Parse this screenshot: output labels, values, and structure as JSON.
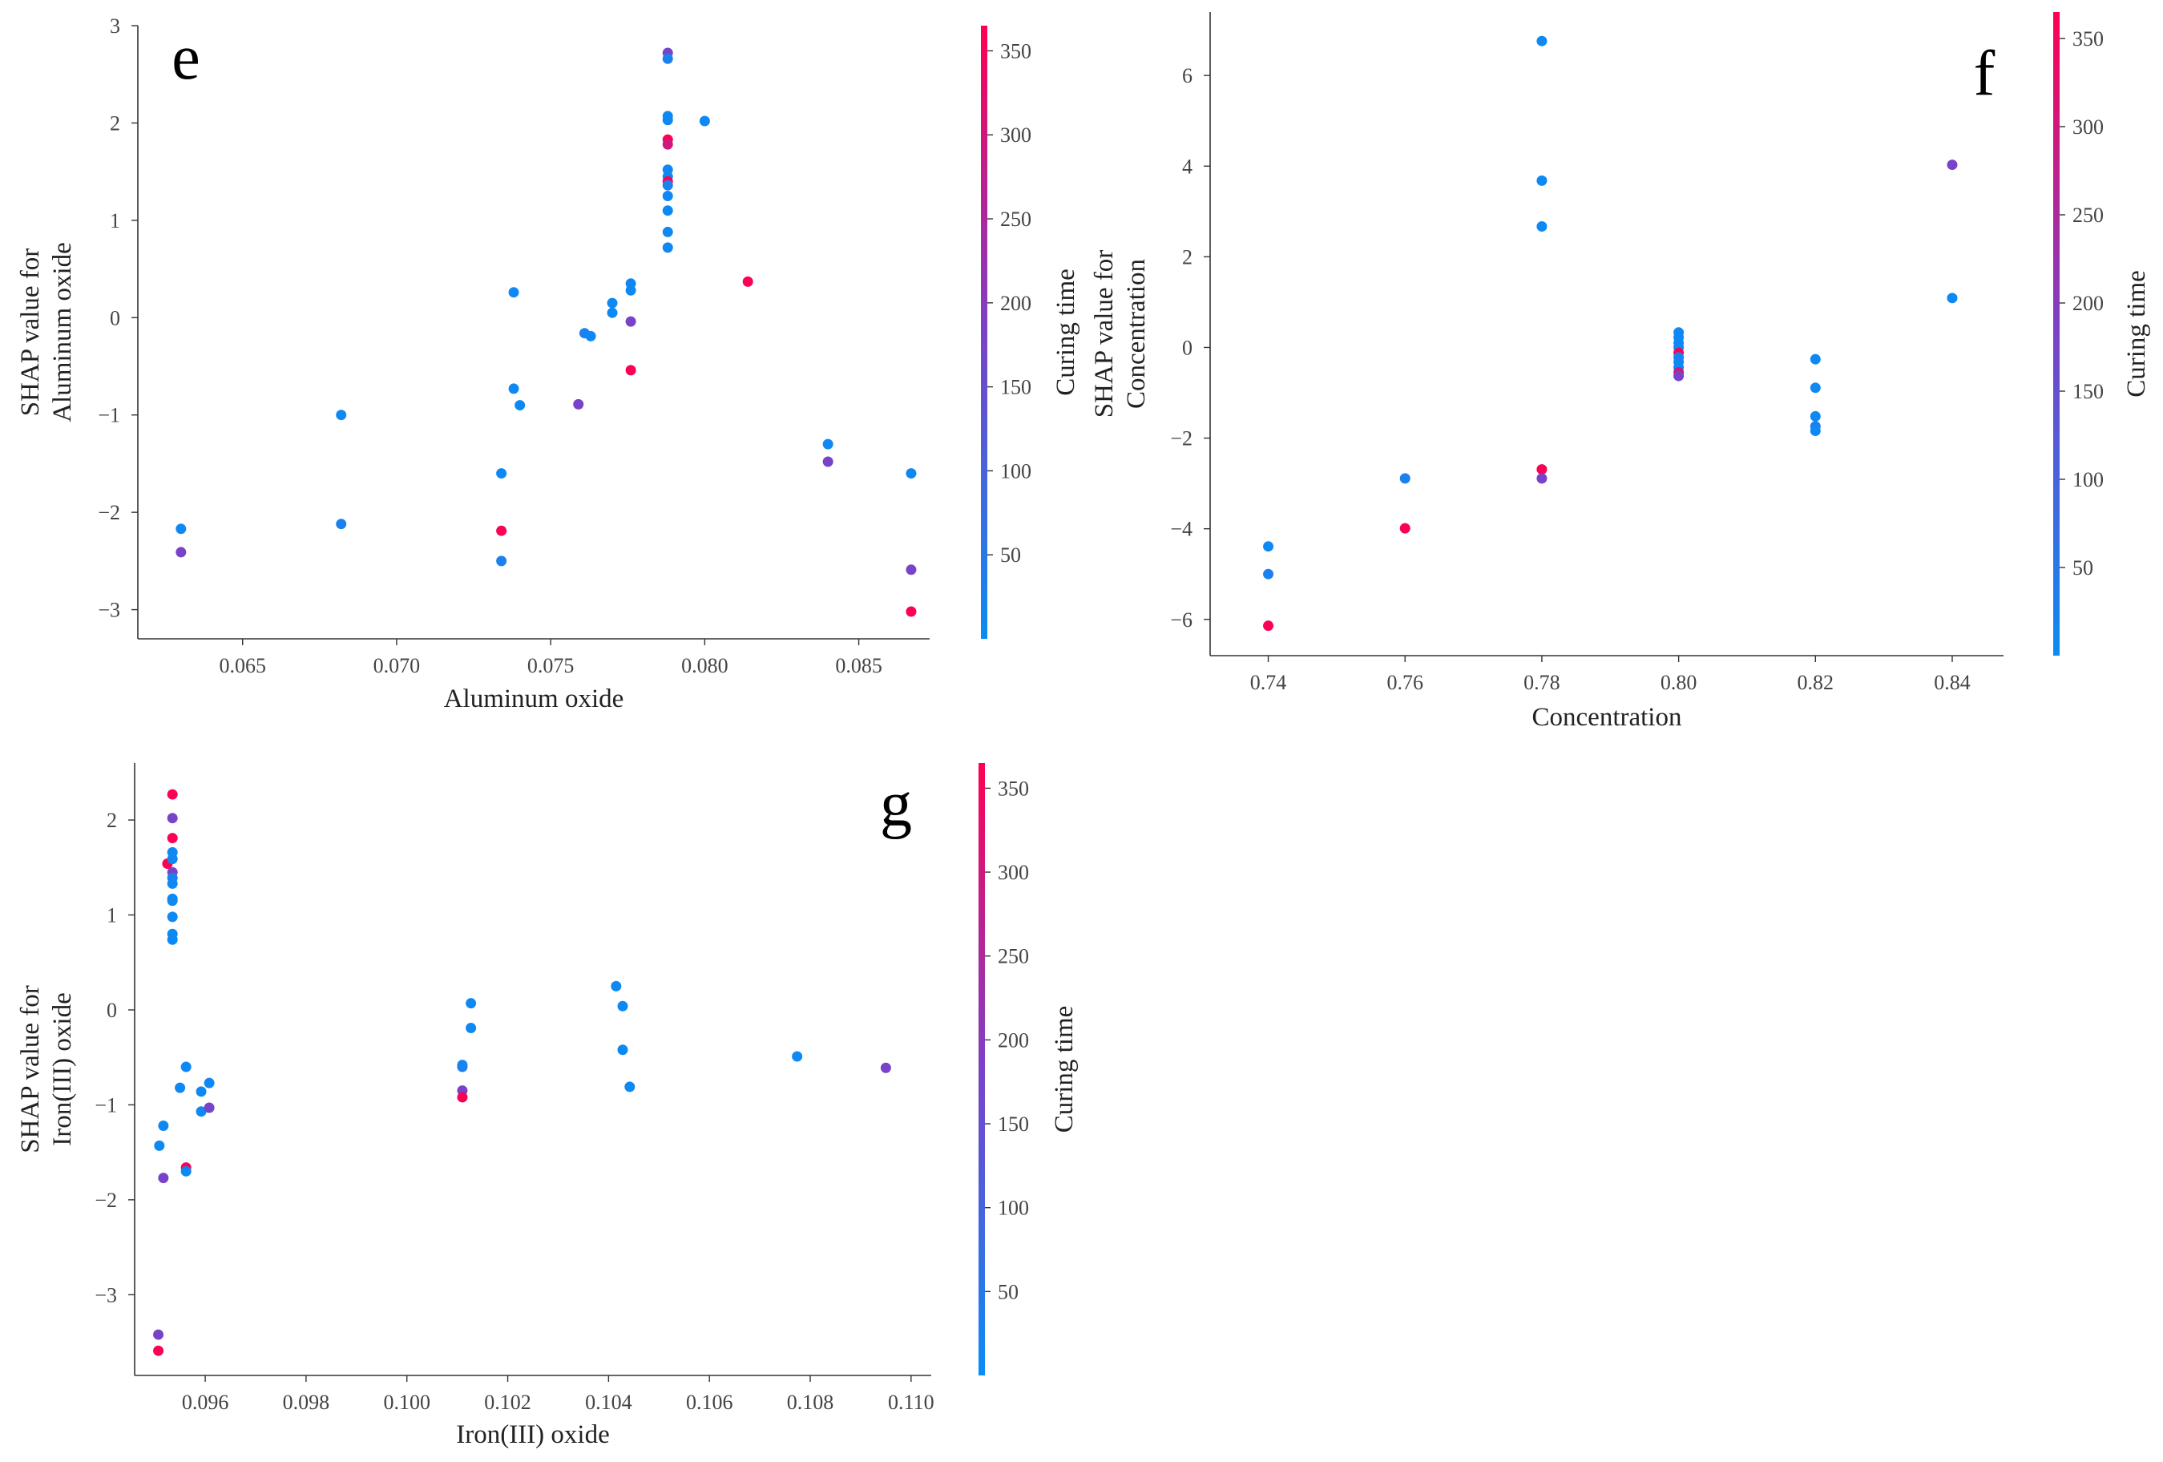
{
  "colors": {
    "low": "#0a8cf5",
    "high": "#ff0052",
    "axis": "#333333"
  },
  "colorbar": {
    "title": "Curing time",
    "range": [
      0,
      365
    ],
    "ticks": [
      50,
      100,
      150,
      200,
      250,
      300,
      350
    ]
  },
  "chart_data": [
    {
      "panel": "e",
      "type": "scatter",
      "xlabel": "Aluminum oxide",
      "ylabel_lines": [
        "SHAP value for",
        "Aluminum oxide"
      ],
      "xlim": [
        0.0616,
        0.0873
      ],
      "ylim": [
        -3.3,
        3.0
      ],
      "xticks": [
        0.065,
        0.07,
        0.075,
        0.08,
        0.085
      ],
      "xtick_labels": [
        "0.065",
        "0.070",
        "0.075",
        "0.080",
        "0.085"
      ],
      "yticks": [
        -3,
        -2,
        -1,
        0,
        1,
        2,
        3
      ],
      "ytick_labels": [
        "−3",
        "−2",
        "−1",
        "0",
        "1",
        "2",
        "3"
      ],
      "points": [
        {
          "x": 0.063,
          "y": -2.17,
          "c": 7
        },
        {
          "x": 0.063,
          "y": -2.41,
          "c": 180
        },
        {
          "x": 0.0682,
          "y": -1.0,
          "c": 7
        },
        {
          "x": 0.0682,
          "y": -2.12,
          "c": 28
        },
        {
          "x": 0.0734,
          "y": -1.6,
          "c": 7
        },
        {
          "x": 0.0734,
          "y": -2.19,
          "c": 360
        },
        {
          "x": 0.0734,
          "y": -2.5,
          "c": 28
        },
        {
          "x": 0.0738,
          "y": 0.26,
          "c": 7
        },
        {
          "x": 0.0738,
          "y": -0.73,
          "c": 7
        },
        {
          "x": 0.074,
          "y": -0.9,
          "c": 7
        },
        {
          "x": 0.0759,
          "y": -0.89,
          "c": 180
        },
        {
          "x": 0.0761,
          "y": -0.16,
          "c": 28
        },
        {
          "x": 0.0763,
          "y": -0.19,
          "c": 7
        },
        {
          "x": 0.077,
          "y": 0.15,
          "c": 7
        },
        {
          "x": 0.077,
          "y": 0.05,
          "c": 7
        },
        {
          "x": 0.0776,
          "y": 0.35,
          "c": 7
        },
        {
          "x": 0.0776,
          "y": 0.28,
          "c": 7
        },
        {
          "x": 0.0776,
          "y": -0.04,
          "c": 180
        },
        {
          "x": 0.0776,
          "y": -0.54,
          "c": 360
        },
        {
          "x": 0.0788,
          "y": 2.72,
          "c": 180
        },
        {
          "x": 0.0788,
          "y": 2.66,
          "c": 28
        },
        {
          "x": 0.0788,
          "y": 2.07,
          "c": 7
        },
        {
          "x": 0.0788,
          "y": 2.03,
          "c": 7
        },
        {
          "x": 0.0788,
          "y": 1.83,
          "c": 360
        },
        {
          "x": 0.0788,
          "y": 1.78,
          "c": 300
        },
        {
          "x": 0.0788,
          "y": 1.52,
          "c": 7
        },
        {
          "x": 0.0788,
          "y": 1.45,
          "c": 7
        },
        {
          "x": 0.0788,
          "y": 1.4,
          "c": 360
        },
        {
          "x": 0.0788,
          "y": 1.36,
          "c": 28
        },
        {
          "x": 0.0788,
          "y": 1.25,
          "c": 7
        },
        {
          "x": 0.0788,
          "y": 1.1,
          "c": 7
        },
        {
          "x": 0.0788,
          "y": 0.88,
          "c": 7
        },
        {
          "x": 0.0788,
          "y": 0.72,
          "c": 7
        },
        {
          "x": 0.08,
          "y": 2.02,
          "c": 7
        },
        {
          "x": 0.0814,
          "y": 0.37,
          "c": 360
        },
        {
          "x": 0.084,
          "y": -1.3,
          "c": 7
        },
        {
          "x": 0.084,
          "y": -1.48,
          "c": 180
        },
        {
          "x": 0.0867,
          "y": -1.6,
          "c": 7
        },
        {
          "x": 0.0867,
          "y": -2.59,
          "c": 180
        },
        {
          "x": 0.0867,
          "y": -3.02,
          "c": 360
        }
      ]
    },
    {
      "panel": "f",
      "type": "scatter",
      "xlabel": "Concentration",
      "ylabel_lines": [
        "SHAP value for",
        "Concentration"
      ],
      "xlim": [
        0.7315,
        0.8475
      ],
      "ylim": [
        -6.8,
        7.4
      ],
      "xticks": [
        0.74,
        0.76,
        0.78,
        0.8,
        0.82,
        0.84
      ],
      "xtick_labels": [
        "0.74",
        "0.76",
        "0.78",
        "0.80",
        "0.82",
        "0.84"
      ],
      "yticks": [
        -6,
        -4,
        -2,
        0,
        2,
        4,
        6
      ],
      "ytick_labels": [
        "−6",
        "−4",
        "−2",
        "0",
        "2",
        "4",
        "6"
      ],
      "points": [
        {
          "x": 0.74,
          "y": -4.39,
          "c": 7
        },
        {
          "x": 0.74,
          "y": -5.0,
          "c": 28
        },
        {
          "x": 0.74,
          "y": -6.14,
          "c": 360
        },
        {
          "x": 0.76,
          "y": -2.89,
          "c": 28
        },
        {
          "x": 0.76,
          "y": -3.99,
          "c": 360
        },
        {
          "x": 0.78,
          "y": 6.76,
          "c": 7
        },
        {
          "x": 0.78,
          "y": 3.68,
          "c": 7
        },
        {
          "x": 0.78,
          "y": 2.67,
          "c": 7
        },
        {
          "x": 0.78,
          "y": -2.69,
          "c": 360
        },
        {
          "x": 0.78,
          "y": -2.89,
          "c": 180
        },
        {
          "x": 0.8,
          "y": 0.33,
          "c": 7
        },
        {
          "x": 0.8,
          "y": 0.22,
          "c": 7
        },
        {
          "x": 0.8,
          "y": 0.1,
          "c": 7
        },
        {
          "x": 0.8,
          "y": 0.0,
          "c": 7
        },
        {
          "x": 0.8,
          "y": -0.12,
          "c": 360
        },
        {
          "x": 0.8,
          "y": -0.22,
          "c": 28
        },
        {
          "x": 0.8,
          "y": -0.32,
          "c": 7
        },
        {
          "x": 0.8,
          "y": -0.44,
          "c": 7
        },
        {
          "x": 0.8,
          "y": -0.55,
          "c": 300
        },
        {
          "x": 0.8,
          "y": -0.63,
          "c": 180
        },
        {
          "x": 0.82,
          "y": -0.26,
          "c": 7
        },
        {
          "x": 0.82,
          "y": -0.89,
          "c": 7
        },
        {
          "x": 0.82,
          "y": -1.52,
          "c": 7
        },
        {
          "x": 0.82,
          "y": -1.74,
          "c": 28
        },
        {
          "x": 0.82,
          "y": -1.84,
          "c": 7
        },
        {
          "x": 0.84,
          "y": 4.03,
          "c": 180
        },
        {
          "x": 0.84,
          "y": 1.09,
          "c": 7
        }
      ]
    },
    {
      "panel": "g",
      "type": "scatter",
      "xlabel": "Iron(III) oxide",
      "ylabel_lines": [
        "SHAP value for",
        "Iron(III) oxide"
      ],
      "xlim": [
        0.0946,
        0.1104
      ],
      "ylim": [
        -3.85,
        2.6
      ],
      "xticks": [
        0.096,
        0.098,
        0.1,
        0.102,
        0.104,
        0.106,
        0.108,
        0.11
      ],
      "xtick_labels": [
        "0.096",
        "0.098",
        "0.100",
        "0.102",
        "0.104",
        "0.106",
        "0.108",
        "0.110"
      ],
      "yticks": [
        -3,
        -2,
        -1,
        0,
        1,
        2
      ],
      "ytick_labels": [
        "−3",
        "−2",
        "−1",
        "0",
        "1",
        "2"
      ],
      "points": [
        {
          "x": 0.09507,
          "y": -3.42,
          "c": 180
        },
        {
          "x": 0.09507,
          "y": -3.59,
          "c": 360
        },
        {
          "x": 0.09509,
          "y": -1.43,
          "c": 7
        },
        {
          "x": 0.09517,
          "y": -1.22,
          "c": 7
        },
        {
          "x": 0.09517,
          "y": -1.77,
          "c": 180
        },
        {
          "x": 0.09525,
          "y": 1.54,
          "c": 360
        },
        {
          "x": 0.09535,
          "y": 2.27,
          "c": 360
        },
        {
          "x": 0.09535,
          "y": 2.02,
          "c": 180
        },
        {
          "x": 0.09535,
          "y": 1.81,
          "c": 360
        },
        {
          "x": 0.09535,
          "y": 1.66,
          "c": 7
        },
        {
          "x": 0.09535,
          "y": 1.59,
          "c": 7
        },
        {
          "x": 0.09535,
          "y": 1.45,
          "c": 180
        },
        {
          "x": 0.09535,
          "y": 1.39,
          "c": 28
        },
        {
          "x": 0.09535,
          "y": 1.33,
          "c": 7
        },
        {
          "x": 0.09535,
          "y": 1.17,
          "c": 7
        },
        {
          "x": 0.09535,
          "y": 1.15,
          "c": 7
        },
        {
          "x": 0.09535,
          "y": 0.98,
          "c": 7
        },
        {
          "x": 0.09535,
          "y": 0.8,
          "c": 7
        },
        {
          "x": 0.09535,
          "y": 0.74,
          "c": 7
        },
        {
          "x": 0.0955,
          "y": -0.82,
          "c": 7
        },
        {
          "x": 0.09562,
          "y": -0.6,
          "c": 7
        },
        {
          "x": 0.09562,
          "y": -1.66,
          "c": 360
        },
        {
          "x": 0.09562,
          "y": -1.7,
          "c": 7
        },
        {
          "x": 0.09592,
          "y": -0.86,
          "c": 7
        },
        {
          "x": 0.09592,
          "y": -1.07,
          "c": 7
        },
        {
          "x": 0.09608,
          "y": -0.77,
          "c": 7
        },
        {
          "x": 0.09608,
          "y": -1.03,
          "c": 180
        },
        {
          "x": 0.1011,
          "y": -0.58,
          "c": 7
        },
        {
          "x": 0.1011,
          "y": -0.6,
          "c": 28
        },
        {
          "x": 0.1011,
          "y": -0.85,
          "c": 180
        },
        {
          "x": 0.1011,
          "y": -0.92,
          "c": 360
        },
        {
          "x": 0.10127,
          "y": 0.07,
          "c": 7
        },
        {
          "x": 0.10127,
          "y": -0.19,
          "c": 7
        },
        {
          "x": 0.10415,
          "y": 0.25,
          "c": 7
        },
        {
          "x": 0.10428,
          "y": 0.04,
          "c": 7
        },
        {
          "x": 0.10428,
          "y": -0.42,
          "c": 7
        },
        {
          "x": 0.10442,
          "y": -0.81,
          "c": 7
        },
        {
          "x": 0.10774,
          "y": -0.49,
          "c": 7
        },
        {
          "x": 0.1095,
          "y": -0.61,
          "c": 180
        }
      ]
    }
  ]
}
